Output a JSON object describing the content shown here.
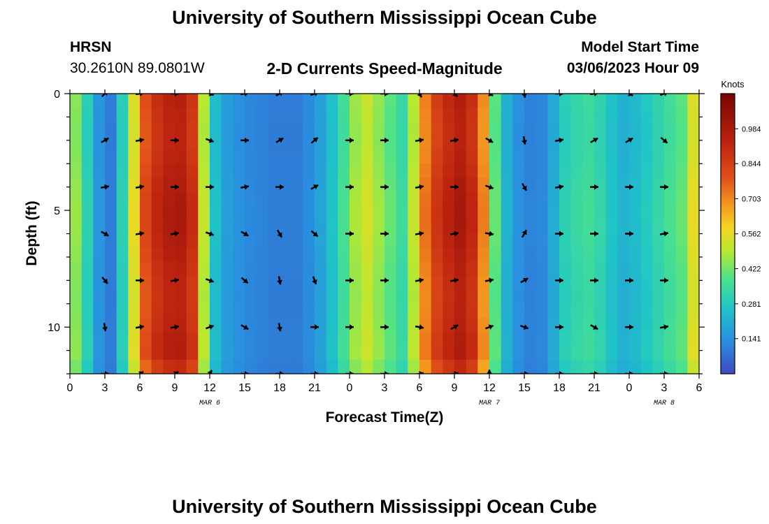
{
  "header": {
    "title": "University of Southern Mississippi Ocean Cube",
    "footer_title": "University of Southern Mississippi Ocean Cube",
    "station": "HRSN",
    "coords": "30.2610N  89.0801W",
    "plot_title": "2-D Currents Speed-Magnitude",
    "model_start_label": "Model Start Time",
    "model_start_value": "03/06/2023 Hour 09"
  },
  "chart_data": {
    "type": "heatmap",
    "title": "2-D Currents Speed-Magnitude",
    "xlabel": "Forecast Time(Z)",
    "ylabel": "Depth (ft)",
    "x_ticks": [
      "0",
      "3",
      "6",
      "9",
      "12",
      "15",
      "18",
      "21",
      "0",
      "3",
      "6",
      "9",
      "12",
      "15",
      "18",
      "21",
      "0",
      "3",
      "6"
    ],
    "x_range_hours": [
      0,
      54
    ],
    "y_ticks": [
      "0",
      "5",
      "10"
    ],
    "y_range_ft": [
      0,
      12
    ],
    "y_inverted": true,
    "date_labels": [
      {
        "label": "MAR 6",
        "hour": 12
      },
      {
        "label": "MAR 7",
        "hour": 36
      },
      {
        "label": "MAR 8",
        "hour": 51
      }
    ],
    "colorbar": {
      "unit": "Knots",
      "ticks": [
        "0.984",
        "0.844",
        "0.703",
        "0.562",
        "0.422",
        "0.281",
        "0.141"
      ],
      "tick_values": [
        0.984,
        0.844,
        0.703,
        0.562,
        0.422,
        0.281,
        0.141
      ],
      "min": 0.0,
      "max": 1.125
    },
    "speed_profile": [
      {
        "h": 0,
        "v": 0.45
      },
      {
        "h": 1,
        "v": 0.3
      },
      {
        "h": 2,
        "v": 0.15
      },
      {
        "h": 3,
        "v": 0.1
      },
      {
        "h": 4,
        "v": 0.3
      },
      {
        "h": 5,
        "v": 0.55
      },
      {
        "h": 6,
        "v": 0.8
      },
      {
        "h": 7,
        "v": 0.9
      },
      {
        "h": 8,
        "v": 0.95
      },
      {
        "h": 9,
        "v": 0.96
      },
      {
        "h": 10,
        "v": 0.88
      },
      {
        "h": 11,
        "v": 0.5
      },
      {
        "h": 12,
        "v": 0.25
      },
      {
        "h": 13,
        "v": 0.17
      },
      {
        "h": 14,
        "v": 0.14
      },
      {
        "h": 15,
        "v": 0.12
      },
      {
        "h": 16,
        "v": 0.11
      },
      {
        "h": 17,
        "v": 0.1
      },
      {
        "h": 18,
        "v": 0.1
      },
      {
        "h": 19,
        "v": 0.1
      },
      {
        "h": 20,
        "v": 0.13
      },
      {
        "h": 21,
        "v": 0.18
      },
      {
        "h": 22,
        "v": 0.26
      },
      {
        "h": 23,
        "v": 0.36
      },
      {
        "h": 24,
        "v": 0.47
      },
      {
        "h": 25,
        "v": 0.52
      },
      {
        "h": 26,
        "v": 0.46
      },
      {
        "h": 27,
        "v": 0.4
      },
      {
        "h": 28,
        "v": 0.34
      },
      {
        "h": 29,
        "v": 0.5
      },
      {
        "h": 30,
        "v": 0.72
      },
      {
        "h": 31,
        "v": 0.85
      },
      {
        "h": 32,
        "v": 0.92
      },
      {
        "h": 33,
        "v": 0.97
      },
      {
        "h": 34,
        "v": 0.9
      },
      {
        "h": 35,
        "v": 0.7
      },
      {
        "h": 36,
        "v": 0.4
      },
      {
        "h": 37,
        "v": 0.22
      },
      {
        "h": 38,
        "v": 0.14
      },
      {
        "h": 39,
        "v": 0.11
      },
      {
        "h": 40,
        "v": 0.12
      },
      {
        "h": 41,
        "v": 0.2
      },
      {
        "h": 42,
        "v": 0.3
      },
      {
        "h": 43,
        "v": 0.33
      },
      {
        "h": 44,
        "v": 0.35
      },
      {
        "h": 45,
        "v": 0.32
      },
      {
        "h": 46,
        "v": 0.26
      },
      {
        "h": 47,
        "v": 0.22
      },
      {
        "h": 48,
        "v": 0.24
      },
      {
        "h": 49,
        "v": 0.28
      },
      {
        "h": 50,
        "v": 0.32
      },
      {
        "h": 51,
        "v": 0.36
      },
      {
        "h": 52,
        "v": 0.4
      },
      {
        "h": 53,
        "v": 0.55
      },
      {
        "h": 54,
        "v": 0.7
      }
    ],
    "vector_columns_hours": [
      3,
      6,
      9,
      12,
      15,
      18,
      21,
      24,
      27,
      30,
      33,
      36,
      39,
      42,
      45,
      48,
      51
    ],
    "vector_rows_ft": [
      0,
      2,
      4,
      6,
      8,
      10,
      12
    ],
    "vector_direction_deg": [
      [
        45,
        10,
        0,
        -20,
        10,
        30,
        20,
        0,
        0,
        -60,
        -45,
        -30,
        -80,
        0,
        10,
        -30,
        20
      ],
      [
        30,
        10,
        0,
        -20,
        0,
        30,
        40,
        0,
        0,
        10,
        10,
        -30,
        -80,
        10,
        30,
        30,
        -40
      ],
      [
        10,
        10,
        0,
        0,
        10,
        0,
        30,
        0,
        0,
        10,
        0,
        -20,
        -60,
        10,
        0,
        0,
        0
      ],
      [
        -30,
        10,
        10,
        -20,
        -30,
        -60,
        -40,
        0,
        0,
        10,
        10,
        -10,
        60,
        0,
        0,
        0,
        10
      ],
      [
        -50,
        0,
        10,
        -20,
        -40,
        -80,
        -70,
        0,
        0,
        10,
        10,
        10,
        30,
        0,
        0,
        0,
        0
      ],
      [
        -80,
        10,
        10,
        20,
        -30,
        -80,
        0,
        0,
        0,
        -10,
        30,
        20,
        -20,
        0,
        -30,
        0,
        10
      ],
      [
        0,
        30,
        30,
        60,
        0,
        0,
        0,
        0,
        0,
        10,
        10,
        90,
        0,
        0,
        0,
        0,
        0
      ]
    ]
  }
}
